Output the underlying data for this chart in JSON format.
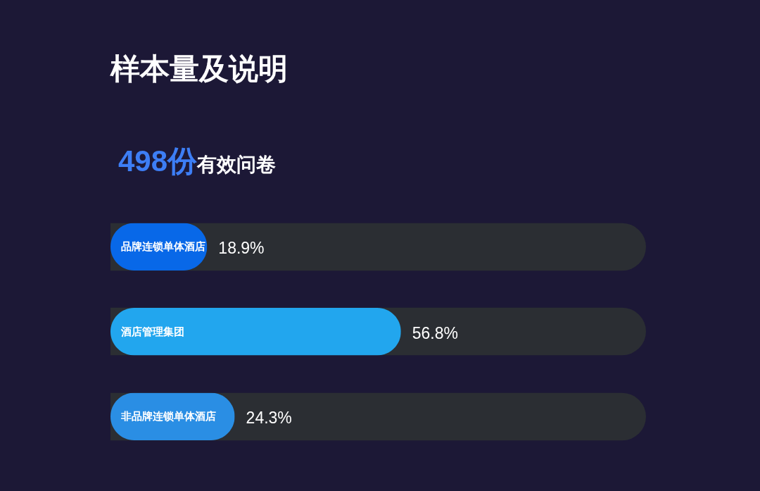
{
  "chart_data": {
    "type": "bar",
    "orientation": "horizontal",
    "title": "样本量及说明",
    "subtitle": "498份有效问卷",
    "categories": [
      "品牌连锁单体酒店",
      "酒店管理集团",
      "非品牌连锁单体酒店"
    ],
    "values": [
      18.9,
      56.8,
      24.3
    ],
    "value_labels": [
      "18.9%",
      "56.8%",
      "24.3%"
    ],
    "colors": [
      "#0868e8",
      "#22a6ee",
      "#2a8ee4"
    ],
    "xlim": [
      0,
      100
    ],
    "grid": "y",
    "tick_labels": "y"
  }
}
